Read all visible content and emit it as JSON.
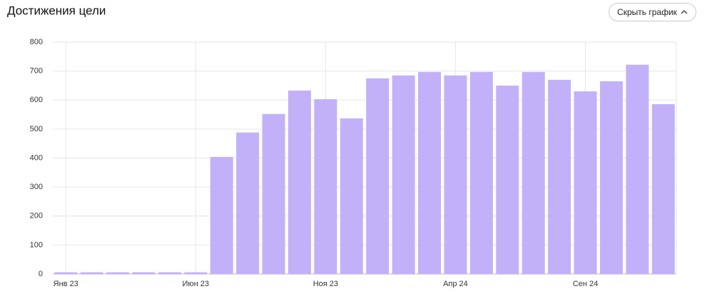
{
  "chart_data": {
    "type": "bar",
    "title": "Достижения цели",
    "categories": [
      "Янв 23",
      null,
      null,
      null,
      null,
      "Июн 23",
      null,
      null,
      null,
      null,
      "Ноя 23",
      null,
      null,
      null,
      null,
      "Апр 24",
      null,
      null,
      null,
      null,
      "Сен 24",
      null,
      null,
      null
    ],
    "values": [
      6,
      6,
      6,
      6,
      6,
      6,
      404,
      488,
      552,
      633,
      603,
      537,
      675,
      685,
      697,
      685,
      697,
      650,
      697,
      670,
      630,
      665,
      722,
      586
    ],
    "color": "#c2b1f9",
    "ylim": [
      0,
      800
    ],
    "yticks": [
      0,
      100,
      200,
      300,
      400,
      500,
      600,
      700,
      800
    ],
    "grid": true
  },
  "toggle_button": "Скрыть график"
}
